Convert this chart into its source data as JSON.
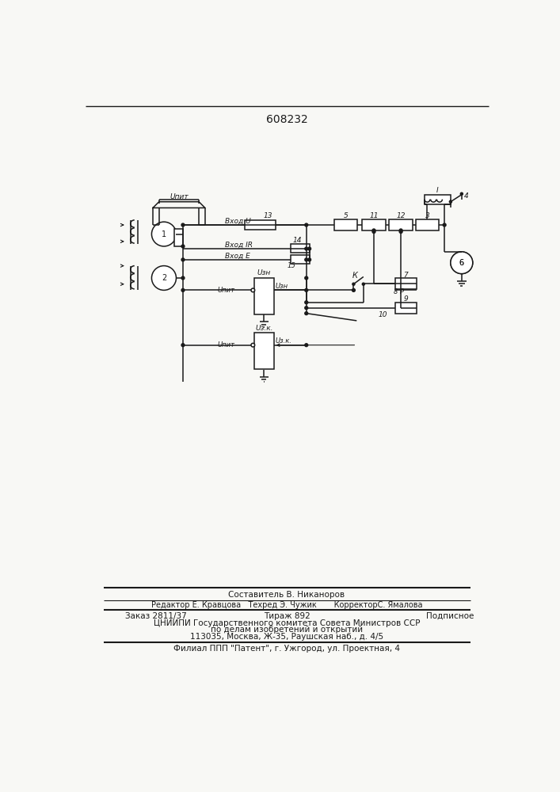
{
  "title_number": "608232",
  "bg_color": "#f8f8f5",
  "line_color": "#1a1a1a",
  "footer_lines": [
    "Составитель В. Никаноров",
    "Редактор Е. Кравцова   Техред Э. Чужик       КорректорС. Ямалова",
    "Заказ 2811/37          Тираж 892              Подписное",
    "ЦНИИПИ Государственного комитета Совета Министров ССР",
    "по делам изобретений и открытий",
    "113035, Москва, Ж-35, Раушская наб., д. 4/5",
    "Филиал ППП \"Патент\", г. Ужгород, ул. Проектная, 4"
  ]
}
